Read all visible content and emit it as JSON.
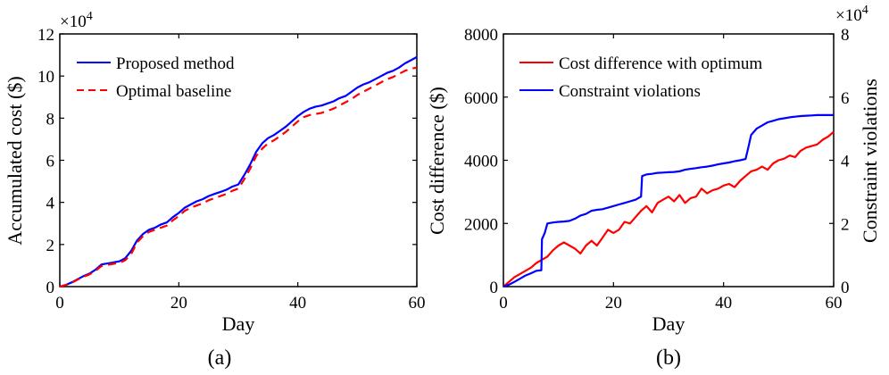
{
  "chart_data": [
    {
      "panel": "a",
      "type": "line",
      "caption": "(a)",
      "xlabel": "Day",
      "ylabel": "Accumulated cost ($)",
      "xlim": [
        0,
        60
      ],
      "ylim": [
        0,
        120000
      ],
      "x_ticks": [
        0,
        20,
        40,
        60
      ],
      "x_tick_labels": [
        "0",
        "20",
        "40",
        "60"
      ],
      "y_ticks": [
        0,
        20000,
        40000,
        60000,
        80000,
        100000,
        120000
      ],
      "y_tick_labels": [
        "0",
        "2",
        "4",
        "6",
        "8",
        "10",
        "12"
      ],
      "y_exponent_base": "×10",
      "y_exponent_power": "4",
      "legend_position": "top-left",
      "series": [
        {
          "name": "Proposed method",
          "color": "#0000ff",
          "dash": "solid",
          "x": [
            0,
            1,
            2,
            3,
            4,
            5,
            6,
            7,
            8,
            9,
            10,
            11,
            12,
            13,
            14,
            15,
            16,
            17,
            18,
            19,
            20,
            21,
            22,
            23,
            24,
            25,
            26,
            27,
            28,
            29,
            30,
            31,
            32,
            33,
            34,
            35,
            36,
            37,
            38,
            39,
            40,
            41,
            42,
            43,
            44,
            45,
            46,
            47,
            48,
            49,
            50,
            51,
            52,
            53,
            54,
            55,
            56,
            57,
            58,
            59,
            60
          ],
          "values": [
            0,
            800,
            2000,
            3500,
            5000,
            6200,
            8000,
            10500,
            11000,
            11500,
            12000,
            13500,
            17000,
            22000,
            25000,
            27000,
            28000,
            29500,
            30500,
            33000,
            35000,
            37500,
            39000,
            40500,
            41500,
            43000,
            44000,
            45000,
            46000,
            47500,
            48500,
            53000,
            58000,
            64000,
            68000,
            70500,
            72000,
            74000,
            76000,
            78500,
            81000,
            83000,
            84500,
            85500,
            86000,
            87000,
            88000,
            89500,
            90500,
            92500,
            94500,
            96000,
            97000,
            98500,
            100000,
            101500,
            102500,
            104000,
            106000,
            107500,
            109000
          ]
        },
        {
          "name": "Optimal baseline",
          "color": "#ff0000",
          "dash": "dashed",
          "x": [
            0,
            1,
            2,
            3,
            4,
            5,
            6,
            7,
            8,
            9,
            10,
            11,
            12,
            13,
            14,
            15,
            16,
            17,
            18,
            19,
            20,
            21,
            22,
            23,
            24,
            25,
            26,
            27,
            28,
            29,
            30,
            31,
            32,
            33,
            34,
            35,
            36,
            37,
            38,
            39,
            40,
            41,
            42,
            43,
            44,
            45,
            46,
            47,
            48,
            49,
            50,
            51,
            52,
            53,
            54,
            55,
            56,
            57,
            58,
            59,
            60
          ],
          "values": [
            0,
            700,
            1800,
            3300,
            4700,
            5800,
            7500,
            9800,
            10300,
            10800,
            11300,
            12500,
            15500,
            21000,
            24000,
            26000,
            27000,
            28000,
            29000,
            31500,
            33500,
            36000,
            37500,
            38500,
            39500,
            41000,
            42000,
            43000,
            44000,
            45500,
            46500,
            51000,
            56000,
            62000,
            65500,
            68000,
            69500,
            71500,
            73500,
            76000,
            78500,
            80500,
            81500,
            82000,
            82500,
            83500,
            84500,
            86000,
            87500,
            89000,
            91000,
            92500,
            94000,
            95500,
            97000,
            98500,
            99500,
            101000,
            102500,
            103500,
            104000
          ]
        }
      ]
    },
    {
      "panel": "b",
      "type": "line",
      "caption": "(b)",
      "xlabel": "Day",
      "ylabel": "Cost difference ($)",
      "ylabel_right": "Constraint violations",
      "xlim": [
        0,
        60
      ],
      "ylim": [
        0,
        8000
      ],
      "ylim_right": [
        0,
        80000
      ],
      "x_ticks": [
        0,
        20,
        40,
        60
      ],
      "x_tick_labels": [
        "0",
        "20",
        "40",
        "60"
      ],
      "y_ticks": [
        0,
        2000,
        4000,
        6000,
        8000
      ],
      "y_tick_labels": [
        "0",
        "2000",
        "4000",
        "6000",
        "8000"
      ],
      "y_right_ticks": [
        0,
        20000,
        40000,
        60000,
        80000
      ],
      "y_right_tick_labels": [
        "0",
        "2",
        "4",
        "6",
        "8"
      ],
      "y_right_exponent_base": "×10",
      "y_right_exponent_power": "4",
      "legend_position": "top-left",
      "series": [
        {
          "name": "Cost difference with optimum",
          "color": "#ff0000",
          "axis": "left",
          "x": [
            0,
            1,
            2,
            3,
            4,
            5,
            6,
            7,
            8,
            9,
            10,
            11,
            12,
            13,
            14,
            15,
            16,
            17,
            18,
            19,
            20,
            21,
            22,
            23,
            24,
            25,
            26,
            27,
            28,
            29,
            30,
            31,
            32,
            33,
            34,
            35,
            36,
            37,
            38,
            39,
            40,
            41,
            42,
            43,
            44,
            45,
            46,
            47,
            48,
            49,
            50,
            51,
            52,
            53,
            54,
            55,
            56,
            57,
            58,
            59,
            60
          ],
          "values": [
            0,
            150,
            300,
            400,
            500,
            600,
            750,
            850,
            950,
            1150,
            1300,
            1400,
            1300,
            1200,
            1050,
            1300,
            1450,
            1300,
            1550,
            1800,
            1700,
            1800,
            2050,
            2000,
            2200,
            2400,
            2550,
            2350,
            2650,
            2750,
            2850,
            2700,
            2900,
            2650,
            2800,
            2850,
            3100,
            2950,
            3050,
            3100,
            3200,
            3250,
            3150,
            3350,
            3500,
            3650,
            3700,
            3800,
            3700,
            3900,
            4000,
            4050,
            4150,
            4100,
            4300,
            4400,
            4450,
            4500,
            4650,
            4750,
            4900
          ]
        },
        {
          "name": "Constraint violations",
          "color": "#0000ff",
          "axis": "right",
          "x": [
            0,
            1,
            2,
            3,
            4,
            5,
            6,
            6.9,
            7,
            7.5,
            8,
            9,
            10,
            11,
            12,
            13,
            14,
            15,
            16,
            17,
            18,
            19,
            20,
            21,
            22,
            23,
            24,
            25,
            25.2,
            26,
            27,
            28,
            29,
            30,
            31,
            32,
            33,
            34,
            35,
            36,
            37,
            38,
            39,
            40,
            41,
            42,
            43,
            44,
            44.5,
            45,
            46,
            47,
            48,
            49,
            50,
            51,
            52,
            53,
            54,
            55,
            56,
            57,
            58,
            59,
            60
          ],
          "values": [
            0,
            600,
            1500,
            2500,
            3500,
            4200,
            5000,
            5200,
            15000,
            17000,
            20000,
            20300,
            20500,
            20600,
            20800,
            21500,
            22500,
            23000,
            24000,
            24300,
            24500,
            25000,
            25500,
            26000,
            26500,
            27000,
            27500,
            28500,
            35000,
            35500,
            35700,
            36000,
            36100,
            36200,
            36300,
            36500,
            37000,
            37300,
            37500,
            37800,
            38000,
            38300,
            38700,
            39000,
            39300,
            39700,
            40000,
            40400,
            44000,
            48000,
            50000,
            51000,
            52000,
            52500,
            53000,
            53300,
            53600,
            53800,
            54000,
            54100,
            54200,
            54300,
            54300,
            54300,
            54300
          ]
        }
      ]
    }
  ]
}
